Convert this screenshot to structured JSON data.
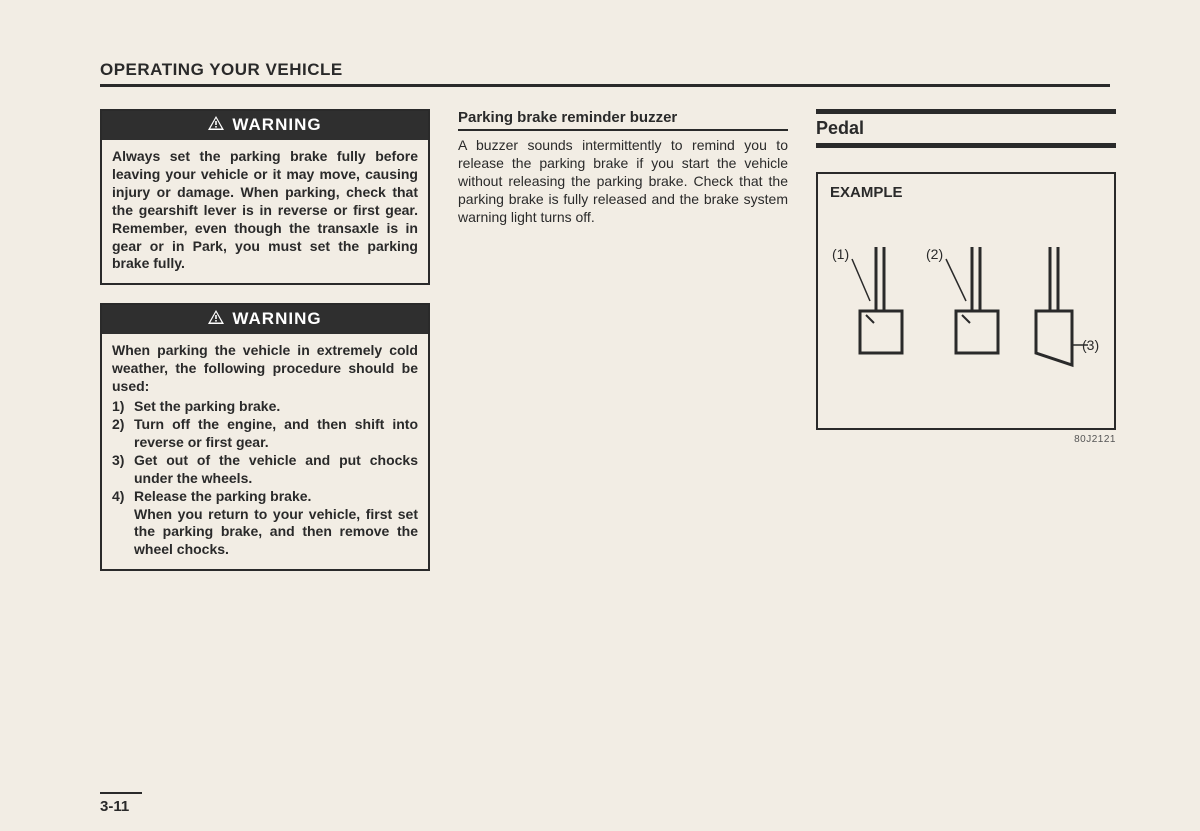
{
  "section_title": "OPERATING YOUR VEHICLE",
  "page_number": "3-11",
  "warning_label": "WARNING",
  "warnings": {
    "w1": {
      "body": "Always set the parking brake fully before leaving your vehicle or it may move, causing injury or damage. When parking, check that the gearshift lever is in reverse or first gear. Remember, even though the transaxle is in gear or in Park, you must set the parking brake fully."
    },
    "w2": {
      "intro": "When parking the vehicle in extremely cold weather, the following procedure should be used:",
      "items": [
        {
          "num": "1)",
          "text": "Set the parking brake."
        },
        {
          "num": "2)",
          "text": "Turn off the engine, and then shift into reverse or first gear."
        },
        {
          "num": "3)",
          "text": "Get out of the vehicle and put chocks under the wheels."
        },
        {
          "num": "4)",
          "text": "Release the parking brake.",
          "followup": "When you return to your vehicle, first set the parking brake, and then remove the wheel chocks."
        }
      ]
    }
  },
  "center": {
    "heading": "Parking brake reminder buzzer",
    "body": "A buzzer sounds intermittently to remind you to release the parking brake if you start the vehicle without releasing the parking brake. Check that the parking brake is fully released and the brake system warning light turns off."
  },
  "right": {
    "title": "Pedal",
    "example_label": "EXAMPLE",
    "diagram_ref": "80J2121",
    "diagram": {
      "labels": {
        "l1": "(1)",
        "l2": "(2)",
        "l3": "(3)"
      },
      "colors": {
        "stroke": "#2a2a2a",
        "fill": "none",
        "bg": "#f2ede4"
      },
      "stroke_width": 3
    }
  }
}
